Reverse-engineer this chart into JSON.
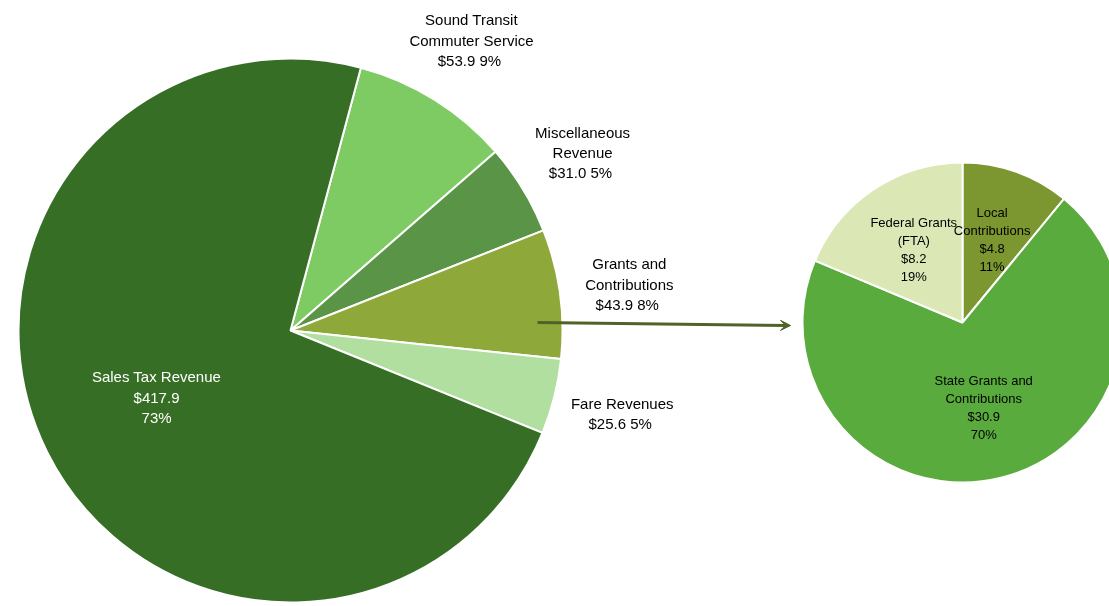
{
  "chart_data": [
    {
      "type": "pie",
      "categories": [
        "Sound Transit Commuter Service",
        "Miscellaneous Revenue",
        "Grants and Contributions",
        "Fare Revenues",
        "Sales Tax Revenue"
      ],
      "values": [
        53.9,
        31.0,
        43.9,
        25.6,
        417.9
      ],
      "colors": [
        "#7dcb62",
        "#5a9447",
        "#8ea93a",
        "#b1dfa0",
        "#376e26"
      ],
      "value_labels": [
        "$53.9  9%",
        "$31.0  5%",
        "$43.9  8%",
        "$25.6  5%",
        "$417.9  73%"
      ]
    },
    {
      "type": "pie",
      "categories": [
        "Local Contributions",
        "State Grants and Contributions",
        "Federal Grants (FTA)"
      ],
      "values": [
        4.8,
        30.9,
        8.2
      ],
      "colors": [
        "#7c9630",
        "#5aab3e",
        "#dbe8b5"
      ],
      "value_labels": [
        "$4.8  11%",
        "$30.9  70%",
        "$8.2  19%"
      ]
    }
  ]
}
